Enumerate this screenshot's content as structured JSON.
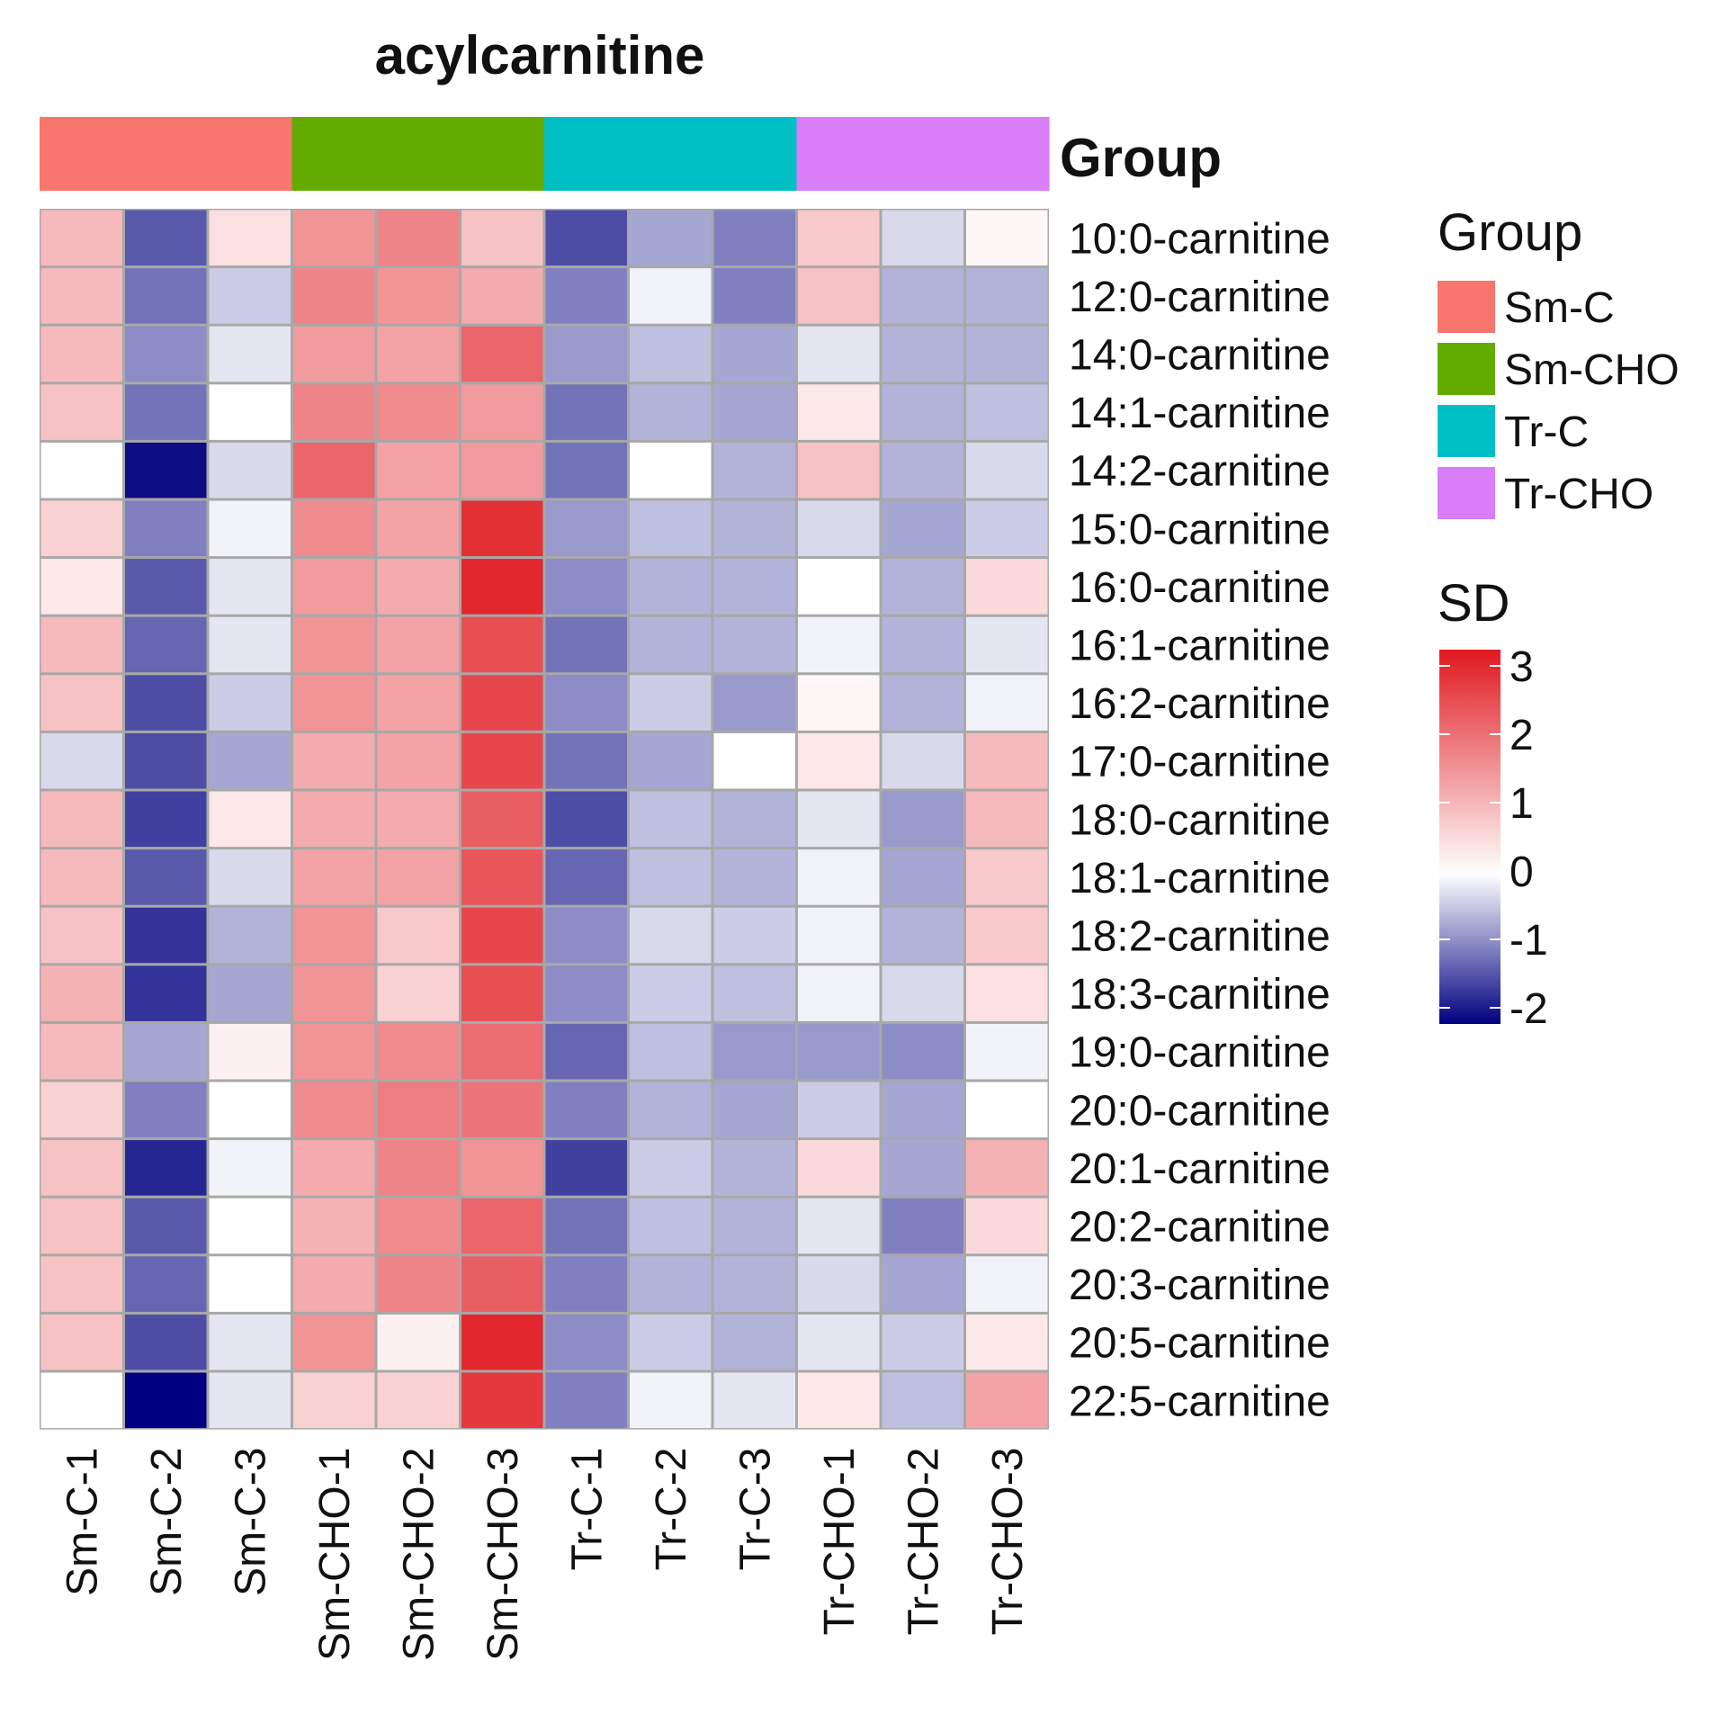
{
  "chart_data": {
    "type": "heatmap",
    "title": "acylcarnitine",
    "annotation_title": "Group",
    "columns": [
      "Sm-C-1",
      "Sm-C-2",
      "Sm-C-3",
      "Sm-CHO-1",
      "Sm-CHO-2",
      "Sm-CHO-3",
      "Tr-C-1",
      "Tr-C-2",
      "Tr-C-3",
      "Tr-CHO-1",
      "Tr-CHO-2",
      "Tr-CHO-3"
    ],
    "column_groups": [
      "Sm-C",
      "Sm-C",
      "Sm-C",
      "Sm-CHO",
      "Sm-CHO",
      "Sm-CHO",
      "Tr-C",
      "Tr-C",
      "Tr-C",
      "Tr-CHO",
      "Tr-CHO",
      "Tr-CHO"
    ],
    "rows": [
      "10:0-carnitine",
      "12:0-carnitine",
      "14:0-carnitine",
      "14:1-carnitine",
      "14:2-carnitine",
      "15:0-carnitine",
      "16:0-carnitine",
      "16:1-carnitine",
      "16:2-carnitine",
      "17:0-carnitine",
      "18:0-carnitine",
      "18:1-carnitine",
      "18:2-carnitine",
      "18:3-carnitine",
      "19:0-carnitine",
      "20:0-carnitine",
      "20:1-carnitine",
      "20:2-carnitine",
      "20:3-carnitine",
      "20:5-carnitine",
      "22:5-carnitine"
    ],
    "values": [
      [
        0.9,
        -1.3,
        0.4,
        1.4,
        1.6,
        0.8,
        -1.4,
        -0.7,
        -1.0,
        0.7,
        -0.3,
        0.1
      ],
      [
        0.9,
        -1.1,
        -0.4,
        1.6,
        1.4,
        1.1,
        -1.0,
        -0.1,
        -1.0,
        0.8,
        -0.6,
        -0.6
      ],
      [
        0.9,
        -0.9,
        -0.2,
        1.3,
        1.2,
        2.0,
        -0.8,
        -0.5,
        -0.7,
        -0.2,
        -0.6,
        -0.6
      ],
      [
        0.8,
        -1.1,
        0.0,
        1.6,
        1.5,
        1.3,
        -1.1,
        -0.6,
        -0.7,
        0.3,
        -0.6,
        -0.5
      ],
      [
        0.0,
        -1.9,
        -0.3,
        2.0,
        1.2,
        1.3,
        -1.1,
        0.0,
        -0.6,
        0.8,
        -0.6,
        -0.3
      ],
      [
        0.6,
        -1.0,
        -0.1,
        1.5,
        1.2,
        2.7,
        -0.8,
        -0.5,
        -0.6,
        -0.3,
        -0.7,
        -0.4
      ],
      [
        0.3,
        -1.3,
        -0.2,
        1.3,
        1.1,
        2.8,
        -0.9,
        -0.6,
        -0.6,
        0.0,
        -0.6,
        0.5
      ],
      [
        0.9,
        -1.2,
        -0.2,
        1.4,
        1.2,
        2.3,
        -1.1,
        -0.6,
        -0.6,
        -0.1,
        -0.6,
        -0.2
      ],
      [
        0.8,
        -1.4,
        -0.4,
        1.4,
        1.2,
        2.4,
        -0.9,
        -0.4,
        -0.8,
        0.1,
        -0.6,
        -0.1
      ],
      [
        -0.3,
        -1.4,
        -0.7,
        1.1,
        1.2,
        2.4,
        -1.1,
        -0.7,
        0.0,
        0.3,
        -0.3,
        0.9
      ],
      [
        0.9,
        -1.5,
        0.3,
        1.1,
        1.1,
        2.1,
        -1.4,
        -0.5,
        -0.6,
        -0.2,
        -0.8,
        0.9
      ],
      [
        0.9,
        -1.3,
        -0.3,
        1.2,
        1.2,
        2.2,
        -1.2,
        -0.5,
        -0.6,
        -0.1,
        -0.7,
        0.7
      ],
      [
        0.8,
        -1.6,
        -0.6,
        1.4,
        0.7,
        2.4,
        -0.9,
        -0.3,
        -0.4,
        -0.1,
        -0.6,
        0.7
      ],
      [
        1.0,
        -1.6,
        -0.7,
        1.4,
        0.6,
        2.3,
        -0.9,
        -0.4,
        -0.5,
        -0.1,
        -0.3,
        0.4
      ],
      [
        0.9,
        -0.7,
        0.2,
        1.4,
        1.5,
        1.9,
        -1.2,
        -0.5,
        -0.8,
        -0.8,
        -0.9,
        -0.1
      ],
      [
        0.6,
        -1.0,
        0.0,
        1.5,
        1.7,
        1.8,
        -1.0,
        -0.6,
        -0.7,
        -0.4,
        -0.7,
        0.0
      ],
      [
        0.8,
        -1.7,
        -0.1,
        1.1,
        1.6,
        1.4,
        -1.5,
        -0.4,
        -0.6,
        0.5,
        -0.7,
        1.0
      ],
      [
        0.8,
        -1.3,
        0.0,
        1.0,
        1.5,
        2.0,
        -1.1,
        -0.5,
        -0.6,
        -0.2,
        -1.0,
        0.5
      ],
      [
        0.8,
        -1.2,
        0.0,
        1.1,
        1.6,
        2.1,
        -1.0,
        -0.6,
        -0.6,
        -0.3,
        -0.7,
        -0.1
      ],
      [
        0.8,
        -1.4,
        -0.2,
        1.4,
        0.2,
        2.8,
        -0.9,
        -0.4,
        -0.6,
        -0.2,
        -0.4,
        0.3
      ],
      [
        0.0,
        -2.0,
        -0.2,
        0.6,
        0.6,
        2.6,
        -1.0,
        -0.1,
        -0.2,
        0.3,
        -0.5,
        1.2
      ]
    ],
    "groups_legend": {
      "title": "Group",
      "entries": [
        {
          "name": "Sm-C",
          "color": "#f8766d"
        },
        {
          "name": "Sm-CHO",
          "color": "#64ab00"
        },
        {
          "name": "Tr-C",
          "color": "#00bfc4"
        },
        {
          "name": "Tr-CHO",
          "color": "#d97df8"
        }
      ]
    },
    "colorbar": {
      "title": "SD",
      "min": -2,
      "max": 3,
      "ticks": [
        3,
        2,
        1,
        0,
        -1,
        -2
      ],
      "low_color": "#000080",
      "mid_color": "#ffffff",
      "high_color": "#e0191f"
    }
  }
}
